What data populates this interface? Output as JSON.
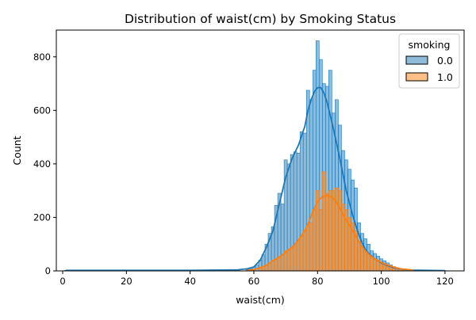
{
  "chart_data": {
    "type": "histogram",
    "title": "Distribution of waist(cm) by Smoking Status",
    "xlabel": "waist(cm)",
    "ylabel": "Count",
    "xlim": [
      -2,
      126
    ],
    "ylim": [
      0,
      900
    ],
    "xticks": [
      0,
      20,
      40,
      60,
      80,
      100,
      120
    ],
    "yticks": [
      0,
      200,
      400,
      600,
      800
    ],
    "bin_width": 1,
    "grid": false,
    "legend": {
      "title": "smoking",
      "placement": "top-right",
      "entries": [
        "0.0",
        "1.0"
      ]
    },
    "series": [
      {
        "name": "0.0",
        "color": "#1f77b4",
        "fill": "rgba(31,119,180,0.5)",
        "bins": [
          [
            1,
            2
          ],
          [
            5,
            1
          ],
          [
            10,
            1
          ],
          [
            20,
            1
          ],
          [
            30,
            1
          ],
          [
            40,
            1
          ],
          [
            50,
            1
          ],
          [
            55,
            2
          ],
          [
            58,
            5
          ],
          [
            59,
            8
          ],
          [
            60,
            15
          ],
          [
            61,
            22
          ],
          [
            62,
            40
          ],
          [
            63,
            60
          ],
          [
            64,
            100
          ],
          [
            65,
            140
          ],
          [
            66,
            165
          ],
          [
            67,
            245
          ],
          [
            68,
            290
          ],
          [
            69,
            250
          ],
          [
            70,
            415
          ],
          [
            71,
            400
          ],
          [
            72,
            435
          ],
          [
            73,
            445
          ],
          [
            74,
            440
          ],
          [
            75,
            520
          ],
          [
            76,
            515
          ],
          [
            77,
            675
          ],
          [
            78,
            640
          ],
          [
            79,
            750
          ],
          [
            80,
            860
          ],
          [
            81,
            790
          ],
          [
            82,
            700
          ],
          [
            83,
            690
          ],
          [
            84,
            750
          ],
          [
            85,
            590
          ],
          [
            86,
            640
          ],
          [
            87,
            545
          ],
          [
            88,
            450
          ],
          [
            89,
            415
          ],
          [
            90,
            380
          ],
          [
            91,
            340
          ],
          [
            92,
            310
          ],
          [
            93,
            180
          ],
          [
            94,
            140
          ],
          [
            95,
            120
          ],
          [
            96,
            100
          ],
          [
            97,
            75
          ],
          [
            98,
            65
          ],
          [
            99,
            55
          ],
          [
            100,
            45
          ],
          [
            101,
            38
          ],
          [
            102,
            30
          ],
          [
            103,
            22
          ],
          [
            104,
            16
          ],
          [
            105,
            10
          ],
          [
            106,
            8
          ],
          [
            107,
            6
          ],
          [
            108,
            4
          ],
          [
            109,
            3
          ],
          [
            110,
            2
          ],
          [
            112,
            1
          ],
          [
            115,
            1
          ],
          [
            120,
            1
          ]
        ],
        "kde": [
          [
            1,
            2
          ],
          [
            40,
            2
          ],
          [
            55,
            4
          ],
          [
            58,
            8
          ],
          [
            60,
            15
          ],
          [
            62,
            40
          ],
          [
            64,
            90
          ],
          [
            66,
            150
          ],
          [
            68,
            250
          ],
          [
            70,
            350
          ],
          [
            72,
            420
          ],
          [
            74,
            470
          ],
          [
            76,
            540
          ],
          [
            77,
            600
          ],
          [
            78,
            640
          ],
          [
            79,
            670
          ],
          [
            80,
            685
          ],
          [
            81,
            685
          ],
          [
            82,
            665
          ],
          [
            83,
            630
          ],
          [
            84,
            580
          ],
          [
            85,
            530
          ],
          [
            86,
            475
          ],
          [
            87,
            420
          ],
          [
            88,
            360
          ],
          [
            89,
            300
          ],
          [
            90,
            255
          ],
          [
            91,
            210
          ],
          [
            92,
            170
          ],
          [
            93,
            135
          ],
          [
            94,
            105
          ],
          [
            95,
            80
          ],
          [
            96,
            65
          ],
          [
            98,
            45
          ],
          [
            100,
            30
          ],
          [
            102,
            20
          ],
          [
            104,
            12
          ],
          [
            106,
            7
          ],
          [
            110,
            3
          ],
          [
            120,
            1
          ]
        ]
      },
      {
        "name": "1.0",
        "color": "#ff7f0e",
        "fill": "rgba(255,127,14,0.5)",
        "bins": [
          [
            58,
            2
          ],
          [
            60,
            5
          ],
          [
            62,
            10
          ],
          [
            63,
            15
          ],
          [
            64,
            20
          ],
          [
            65,
            30
          ],
          [
            66,
            40
          ],
          [
            67,
            45
          ],
          [
            68,
            50
          ],
          [
            69,
            60
          ],
          [
            70,
            75
          ],
          [
            71,
            80
          ],
          [
            72,
            90
          ],
          [
            73,
            95
          ],
          [
            74,
            110
          ],
          [
            75,
            130
          ],
          [
            76,
            150
          ],
          [
            77,
            170
          ],
          [
            78,
            180
          ],
          [
            79,
            230
          ],
          [
            80,
            300
          ],
          [
            81,
            230
          ],
          [
            82,
            370
          ],
          [
            83,
            290
          ],
          [
            84,
            300
          ],
          [
            85,
            300
          ],
          [
            86,
            310
          ],
          [
            87,
            300
          ],
          [
            88,
            250
          ],
          [
            89,
            230
          ],
          [
            90,
            200
          ],
          [
            91,
            180
          ],
          [
            92,
            150
          ],
          [
            93,
            110
          ],
          [
            94,
            90
          ],
          [
            95,
            70
          ],
          [
            96,
            55
          ],
          [
            97,
            50
          ],
          [
            98,
            42
          ],
          [
            99,
            38
          ],
          [
            100,
            30
          ],
          [
            101,
            25
          ],
          [
            102,
            20
          ],
          [
            103,
            15
          ],
          [
            104,
            10
          ],
          [
            105,
            8
          ],
          [
            106,
            5
          ],
          [
            107,
            3
          ],
          [
            110,
            2
          ]
        ],
        "kde": [
          [
            58,
            2
          ],
          [
            60,
            5
          ],
          [
            62,
            12
          ],
          [
            64,
            22
          ],
          [
            66,
            38
          ],
          [
            68,
            52
          ],
          [
            70,
            70
          ],
          [
            72,
            88
          ],
          [
            74,
            115
          ],
          [
            76,
            150
          ],
          [
            77,
            175
          ],
          [
            78,
            205
          ],
          [
            79,
            235
          ],
          [
            80,
            258
          ],
          [
            81,
            272
          ],
          [
            82,
            280
          ],
          [
            83,
            282
          ],
          [
            84,
            278
          ],
          [
            85,
            270
          ],
          [
            86,
            255
          ],
          [
            87,
            235
          ],
          [
            88,
            210
          ],
          [
            89,
            190
          ],
          [
            90,
            170
          ],
          [
            91,
            150
          ],
          [
            92,
            130
          ],
          [
            93,
            110
          ],
          [
            94,
            90
          ],
          [
            95,
            75
          ],
          [
            96,
            62
          ],
          [
            98,
            45
          ],
          [
            100,
            32
          ],
          [
            102,
            22
          ],
          [
            104,
            14
          ],
          [
            106,
            8
          ],
          [
            110,
            3
          ]
        ]
      }
    ]
  }
}
